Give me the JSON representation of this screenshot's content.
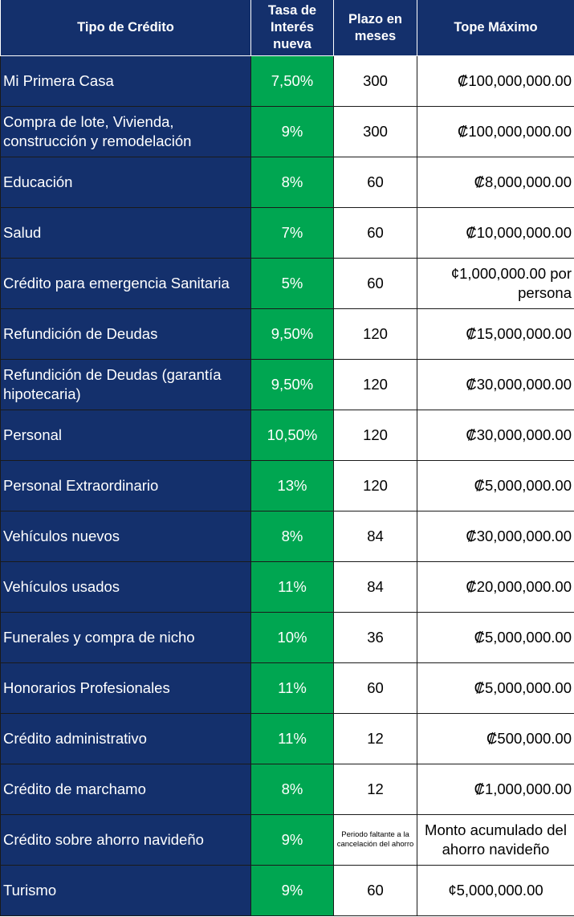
{
  "table": {
    "headers": [
      "Tipo de Crédito",
      "Tasa de Interés nueva",
      "Plazo en meses",
      "Tope Máximo"
    ],
    "rows": [
      [
        "Mi Primera Casa",
        "7,50%",
        "300",
        "₡100,000,000.00"
      ],
      [
        "Compra de lote, Vivienda, construcción y remodelación",
        "9%",
        "300",
        "₡100,000,000.00"
      ],
      [
        "Educación",
        "8%",
        "60",
        "₡8,000,000.00"
      ],
      [
        "Salud",
        "7%",
        "60",
        "₡10,000,000.00"
      ],
      [
        "Crédito para emergencia Sanitaria",
        "5%",
        "60",
        "¢1,000,000.00 por persona"
      ],
      [
        "Refundición de Deudas",
        "9,50%",
        "120",
        "₡15,000,000.00"
      ],
      [
        "Refundición de Deudas (garantía hipotecaria)",
        "9,50%",
        "120",
        "₡30,000,000.00"
      ],
      [
        "Personal",
        "10,50%",
        "120",
        "₡30,000,000.00"
      ],
      [
        "Personal Extraordinario",
        "13%",
        "120",
        "₡5,000,000.00"
      ],
      [
        "Vehículos nuevos",
        "8%",
        "84",
        "₡30,000,000.00"
      ],
      [
        "Vehículos usados",
        "11%",
        "84",
        "₡20,000,000.00"
      ],
      [
        "Funerales y compra de nicho",
        "10%",
        "36",
        "₡5,000,000.00"
      ],
      [
        "Honorarios Profesionales",
        "11%",
        "60",
        "₡5,000,000.00"
      ],
      [
        "Crédito administrativo",
        "11%",
        "12",
        "₡500,000.00"
      ],
      [
        "Crédito de marchamo",
        "8%",
        "12",
        "₡1,000,000.00"
      ],
      [
        "Crédito sobre ahorro navideño",
        "9%",
        "Periodo faltante a la cancelación del ahorro",
        "Monto acumulado del ahorro navideño"
      ],
      [
        "Turismo",
        "9%",
        "60",
        "¢5,000,000.00"
      ]
    ]
  }
}
